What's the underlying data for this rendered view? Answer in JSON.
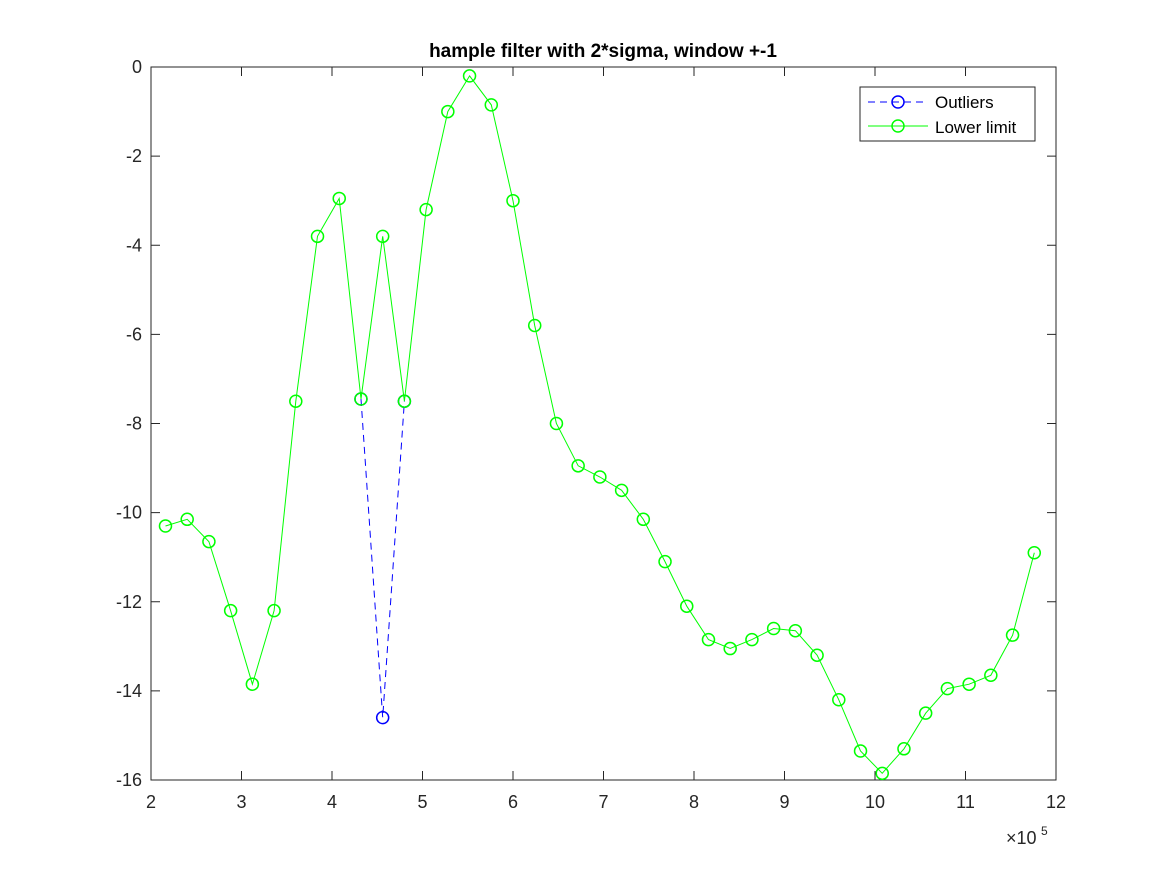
{
  "chart_data": {
    "type": "line",
    "title": "hample filter with 2*sigma, window +-1",
    "xlabel": "",
    "ylabel": "",
    "xlim": [
      2,
      12
    ],
    "ylim": [
      -16,
      0
    ],
    "x_tick_values": [
      2,
      3,
      4,
      5,
      6,
      7,
      8,
      9,
      10,
      11,
      12
    ],
    "x_tick_labels": [
      "2",
      "3",
      "4",
      "5",
      "6",
      "7",
      "8",
      "9",
      "10",
      "11",
      "12"
    ],
    "y_tick_values": [
      0,
      -2,
      -4,
      -6,
      -8,
      -10,
      -12,
      -14,
      -16
    ],
    "y_tick_labels": [
      "0",
      "-2",
      "-4",
      "-6",
      "-8",
      "-10",
      "-12",
      "-14",
      "-16"
    ],
    "x_exponent_base": "×10",
    "x_exponent_power": "5",
    "grid": false,
    "legend_position": "top-right",
    "series": [
      {
        "name": "Outliers",
        "color": "#0000ff",
        "line_style": "dashed",
        "marker": "circle",
        "x": [
          4.32,
          4.56,
          4.8
        ],
        "y": [
          -7.45,
          -14.6,
          -7.5
        ]
      },
      {
        "name": "Lower limit",
        "color": "#00ff00",
        "line_style": "solid",
        "marker": "circle",
        "x": [
          2.16,
          2.4,
          2.64,
          2.88,
          3.12,
          3.36,
          3.6,
          3.84,
          4.08,
          4.32,
          4.56,
          4.8,
          5.04,
          5.28,
          5.52,
          5.76,
          6.0,
          6.24,
          6.48,
          6.72,
          6.96,
          7.2,
          7.44,
          7.68,
          7.92,
          8.16,
          8.4,
          8.64,
          8.88,
          9.12,
          9.36,
          9.6,
          9.84,
          10.08,
          10.32,
          10.56,
          10.8,
          11.04,
          11.28,
          11.52,
          11.76
        ],
        "y": [
          -10.3,
          -10.15,
          -10.65,
          -12.2,
          -13.85,
          -12.2,
          -7.5,
          -3.8,
          -2.95,
          -7.45,
          -3.8,
          -7.5,
          -3.2,
          -1.0,
          -0.2,
          -0.85,
          -3.0,
          -5.8,
          -8.0,
          -8.95,
          -9.2,
          -9.5,
          -10.15,
          -11.1,
          -12.1,
          -12.85,
          -13.05,
          -12.85,
          -12.6,
          -12.65,
          -13.2,
          -14.2,
          -15.35,
          -15.85,
          -15.3,
          -14.5,
          -13.95,
          -13.85,
          -13.65,
          -12.75,
          -10.9
        ]
      }
    ]
  }
}
